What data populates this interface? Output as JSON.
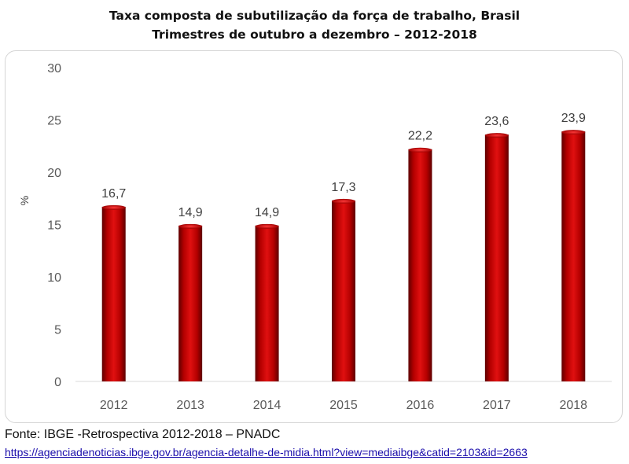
{
  "title": {
    "line1": "Taxa composta de subutilização da força de trabalho, Brasil",
    "line2": "Trimestres de outubro a dezembro – 2012-2018"
  },
  "chart_data": {
    "type": "bar",
    "categories": [
      "2012",
      "2013",
      "2014",
      "2015",
      "2016",
      "2017",
      "2018"
    ],
    "values": [
      16.7,
      14.9,
      14.9,
      17.3,
      22.2,
      23.6,
      23.9
    ],
    "value_labels": [
      "16,7",
      "14,9",
      "14,9",
      "17,3",
      "22,2",
      "23,6",
      "23,9"
    ],
    "ylabel": "%",
    "ylim": [
      0,
      30
    ],
    "yticks": [
      0,
      5,
      10,
      15,
      20,
      25,
      30
    ],
    "grid": false,
    "bar_color": "#c00000"
  },
  "footer": {
    "source": "Fonte: IBGE -Retrospectiva 2012-2018 – PNADC",
    "link": "https://agenciadenoticias.ibge.gov.br/agencia-detalhe-de-midia.html?view=mediaibge&catid=2103&id=2663"
  }
}
